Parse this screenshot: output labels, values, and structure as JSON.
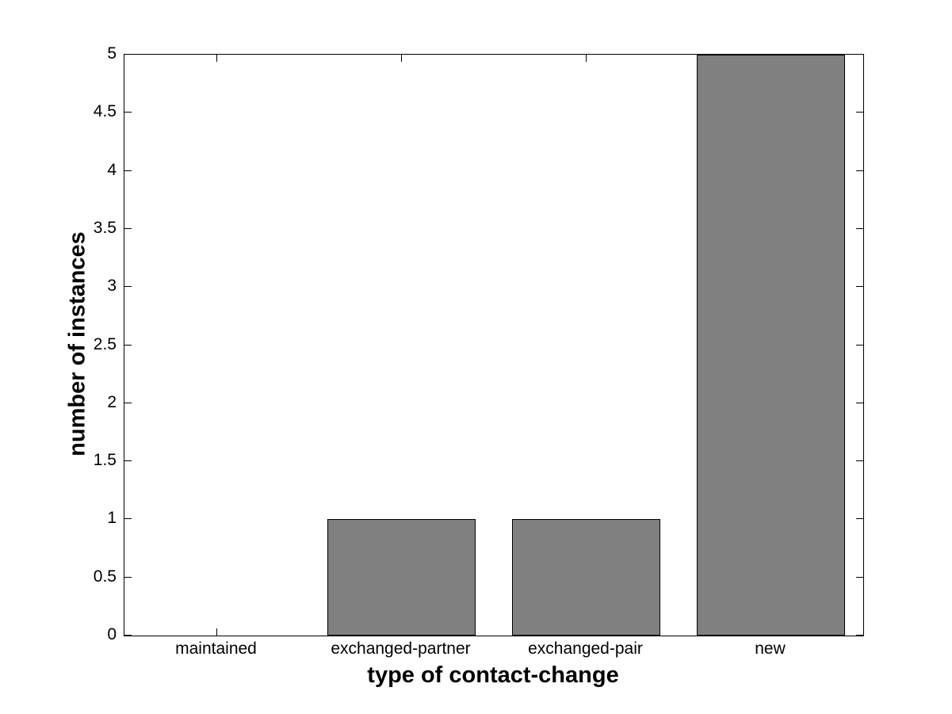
{
  "figure": {
    "background_color": "#ffffff"
  },
  "chart_data": {
    "type": "bar",
    "title": "",
    "xlabel": "type of contact-change",
    "ylabel": "number of instances",
    "categories": [
      "maintained",
      "exchanged-partner",
      "exchanged-pair",
      "new"
    ],
    "values": [
      0,
      1,
      1,
      5
    ],
    "ylim": [
      0,
      5
    ],
    "yticks": [
      0,
      0.5,
      1,
      1.5,
      2,
      2.5,
      3,
      3.5,
      4,
      4.5,
      5
    ],
    "ytick_labels": [
      "0",
      "0.5",
      "1",
      "1.5",
      "2",
      "2.5",
      "3",
      "3.5",
      "4",
      "4.5",
      "5"
    ],
    "grid": "off",
    "legend": "none",
    "box": "on",
    "tick_direction": "in",
    "bar_width_fraction": 0.8,
    "bar_color": "#808080",
    "bar_edge_color": "#000000",
    "axis_color": "#000000",
    "text_color": "#000000"
  }
}
